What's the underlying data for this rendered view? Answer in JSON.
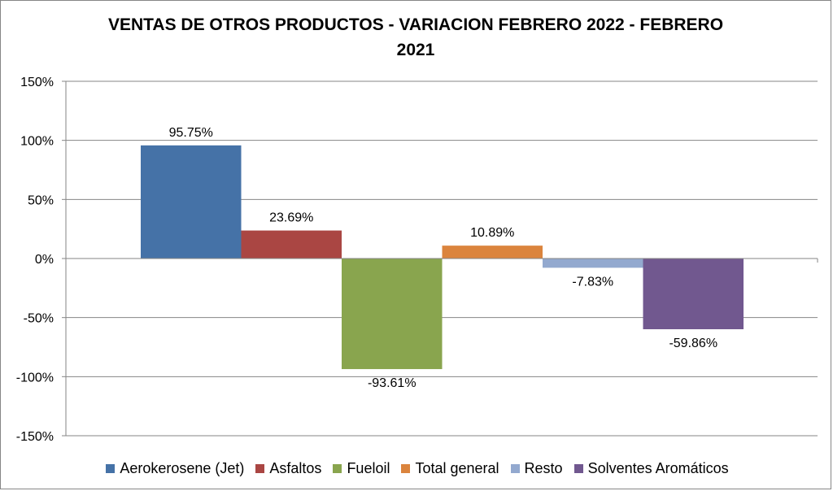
{
  "chart_data": {
    "type": "bar",
    "title": "VENTAS DE OTROS PRODUCTOS - VARIACION FEBRERO 2022 - FEBRERO 2021",
    "xlabel": "",
    "ylabel": "",
    "ylim": [
      -150,
      150
    ],
    "y_ticks": [
      150,
      100,
      50,
      0,
      -50,
      -100,
      -150
    ],
    "y_tick_labels": [
      "150%",
      "100%",
      "50%",
      "0%",
      "-50%",
      "-100%",
      "-150%"
    ],
    "grid": true,
    "legend_position": "bottom",
    "series": [
      {
        "name": "Aerokerosene (Jet)",
        "value": 95.75,
        "label": "95.75%",
        "color": "#4572A7"
      },
      {
        "name": "Asfaltos",
        "value": 23.69,
        "label": "23.69%",
        "color": "#AA4643"
      },
      {
        "name": "Fueloil",
        "value": -93.61,
        "label": "-93.61%",
        "color": "#89A54E"
      },
      {
        "name": "Total general",
        "value": 10.89,
        "label": "10.89%",
        "color": "#DB843D"
      },
      {
        "name": "Resto",
        "value": -7.83,
        "label": "-7.83%",
        "color": "#93A9CF"
      },
      {
        "name": "Solventes Aromáticos",
        "value": -59.86,
        "label": "-59.86%",
        "color": "#71588F"
      }
    ]
  }
}
